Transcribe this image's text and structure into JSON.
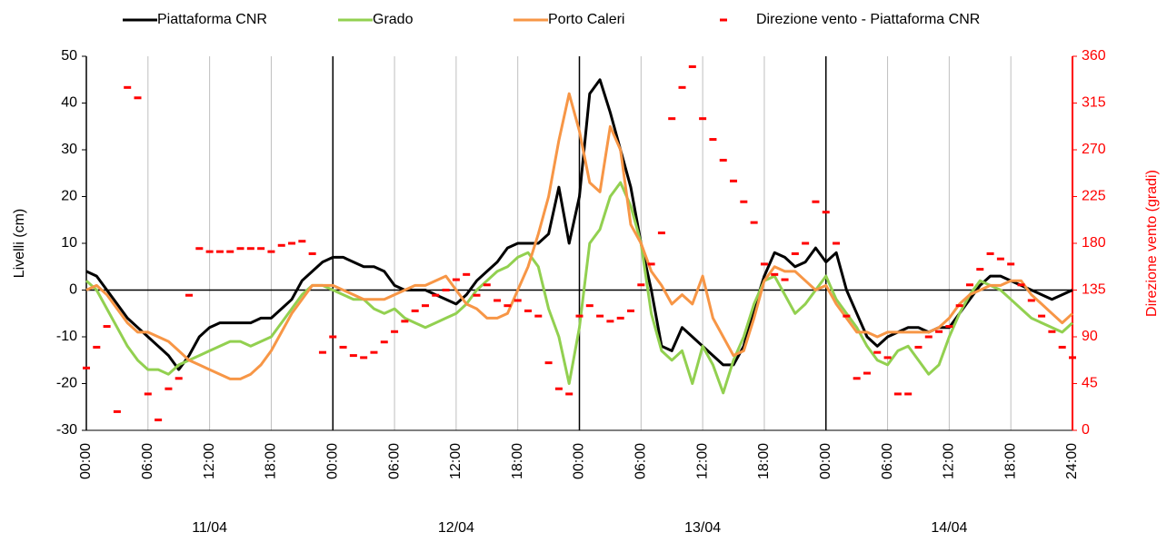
{
  "chart_data": {
    "type": "line",
    "y_label": "Livelli (cm)",
    "y2_label": "Direzione vento (gradi)",
    "x": [
      0,
      1,
      2,
      3,
      4,
      5,
      6,
      7,
      8,
      9,
      10,
      11,
      12,
      13,
      14,
      15,
      16,
      17,
      18,
      19,
      20,
      21,
      22,
      23,
      24,
      25,
      26,
      27,
      28,
      29,
      30,
      31,
      32,
      33,
      34,
      35,
      36,
      37,
      38,
      39,
      40,
      41,
      42,
      43,
      44,
      45,
      46,
      47,
      48,
      49,
      50,
      51,
      52,
      53,
      54,
      55,
      56,
      57,
      58,
      59,
      60,
      61,
      62,
      63,
      64,
      65,
      66,
      67,
      68,
      69,
      70,
      71,
      72,
      73,
      74,
      75,
      76,
      77,
      78,
      79,
      80,
      81,
      82,
      83,
      84,
      85,
      86,
      87,
      88,
      89,
      90,
      91,
      92,
      93,
      94,
      95,
      96
    ],
    "series": [
      {
        "name": "Piattaforma CNR",
        "color": "#000000",
        "values": [
          4,
          3,
          0,
          -3,
          -6,
          -8,
          -10,
          -12,
          -14,
          -17,
          -14,
          -10,
          -8,
          -7,
          -7,
          -7,
          -7,
          -6,
          -6,
          -4,
          -2,
          2,
          4,
          6,
          7,
          7,
          6,
          5,
          5,
          4,
          1,
          0,
          0,
          0,
          -1,
          -2,
          -3,
          -1,
          2,
          4,
          6,
          9,
          10,
          10,
          10,
          12,
          22,
          10,
          20,
          42,
          45,
          38,
          30,
          22,
          10,
          0,
          -12,
          -13,
          -8,
          -10,
          -12,
          -14,
          -16,
          -16,
          -12,
          -4,
          3,
          8,
          7,
          5,
          6,
          9,
          6,
          8,
          0,
          -5,
          -10,
          -12,
          -10,
          -9,
          -8,
          -8,
          -9,
          -8,
          -8,
          -5,
          -2,
          1,
          3,
          3,
          2,
          1,
          0,
          -1,
          -2,
          -1,
          0
        ]
      },
      {
        "name": "Grado",
        "color": "#92d050",
        "values": [
          2,
          0,
          -4,
          -8,
          -12,
          -15,
          -17,
          -17,
          -18,
          -16,
          -15,
          -14,
          -13,
          -12,
          -11,
          -11,
          -12,
          -11,
          -10,
          -7,
          -4,
          -1,
          1,
          1,
          0,
          -1,
          -2,
          -2,
          -4,
          -5,
          -4,
          -6,
          -7,
          -8,
          -7,
          -6,
          -5,
          -3,
          0,
          2,
          4,
          5,
          7,
          8,
          5,
          -4,
          -10,
          -20,
          -8,
          10,
          13,
          20,
          23,
          18,
          10,
          -5,
          -13,
          -15,
          -13,
          -20,
          -12,
          -16,
          -22,
          -15,
          -10,
          -3,
          2,
          3,
          -1,
          -5,
          -3,
          0,
          3,
          -2,
          -5,
          -8,
          -12,
          -15,
          -16,
          -13,
          -12,
          -15,
          -18,
          -16,
          -10,
          -5,
          -1,
          2,
          1,
          0,
          -2,
          -4,
          -6,
          -7,
          -8,
          -9,
          -7
        ]
      },
      {
        "name": "Porto Caleri",
        "color": "#f79646",
        "values": [
          0,
          1,
          -1,
          -4,
          -7,
          -9,
          -9,
          -10,
          -11,
          -13,
          -15,
          -16,
          -17,
          -18,
          -19,
          -19,
          -18,
          -16,
          -13,
          -9,
          -5,
          -2,
          1,
          1,
          1,
          0,
          -1,
          -2,
          -2,
          -2,
          -1,
          0,
          1,
          1,
          2,
          3,
          0,
          -3,
          -4,
          -6,
          -6,
          -5,
          0,
          5,
          12,
          20,
          32,
          42,
          34,
          23,
          21,
          35,
          30,
          14,
          10,
          4,
          1,
          -3,
          -1,
          -3,
          3,
          -6,
          -10,
          -14,
          -13,
          -6,
          2,
          5,
          4,
          4,
          2,
          0,
          1,
          -3,
          -6,
          -9,
          -9,
          -10,
          -9,
          -9,
          -9,
          -9,
          -9,
          -8,
          -6,
          -3,
          -1,
          0,
          1,
          1,
          2,
          2,
          -1,
          -3,
          -5,
          -7,
          -5
        ]
      },
      {
        "name": "Direzione vento - Piattaforma CNR",
        "color": "#ff0000",
        "axis": "y2",
        "mode": "markers",
        "values": [
          60,
          80,
          100,
          18,
          330,
          320,
          35,
          10,
          40,
          50,
          130,
          175,
          172,
          172,
          172,
          175,
          175,
          175,
          172,
          178,
          180,
          182,
          170,
          75,
          90,
          80,
          72,
          70,
          75,
          85,
          95,
          105,
          115,
          120,
          130,
          135,
          145,
          150,
          130,
          140,
          125,
          120,
          125,
          115,
          110,
          65,
          40,
          35,
          110,
          120,
          110,
          105,
          108,
          115,
          140,
          160,
          190,
          300,
          330,
          350,
          300,
          280,
          260,
          240,
          220,
          200,
          160,
          150,
          145,
          170,
          180,
          220,
          210,
          180,
          110,
          50,
          55,
          75,
          70,
          35,
          35,
          80,
          90,
          95,
          100,
          120,
          140,
          155,
          170,
          165,
          160,
          140,
          125,
          110,
          95,
          80,
          70
        ]
      }
    ],
    "xlim": [
      0,
      96
    ],
    "xticks": [
      {
        "value": 0,
        "label": "00:00"
      },
      {
        "value": 6,
        "label": "06:00"
      },
      {
        "value": 12,
        "label": "12:00"
      },
      {
        "value": 18,
        "label": "18:00"
      },
      {
        "value": 24,
        "label": "00:00"
      },
      {
        "value": 30,
        "label": "06:00"
      },
      {
        "value": 36,
        "label": "12:00"
      },
      {
        "value": 42,
        "label": "18:00"
      },
      {
        "value": 48,
        "label": "00:00"
      },
      {
        "value": 54,
        "label": "06:00"
      },
      {
        "value": 60,
        "label": "12:00"
      },
      {
        "value": 66,
        "label": "18:00"
      },
      {
        "value": 72,
        "label": "00:00"
      },
      {
        "value": 78,
        "label": "06:00"
      },
      {
        "value": 84,
        "label": "12:00"
      },
      {
        "value": 90,
        "label": "18:00"
      },
      {
        "value": 96,
        "label": "24:00"
      }
    ],
    "day_labels": [
      {
        "value": 12,
        "label": "11/04"
      },
      {
        "value": 36,
        "label": "12/04"
      },
      {
        "value": 60,
        "label": "13/04"
      },
      {
        "value": 84,
        "label": "14/04"
      }
    ],
    "ylim": [
      -30,
      50
    ],
    "yticks": [
      -30,
      -20,
      -10,
      0,
      10,
      20,
      30,
      40,
      50
    ],
    "y2lim": [
      0,
      360
    ],
    "y2ticks": [
      0,
      45,
      90,
      135,
      180,
      225,
      270,
      315,
      360
    ],
    "legend": "top",
    "grid": true
  }
}
